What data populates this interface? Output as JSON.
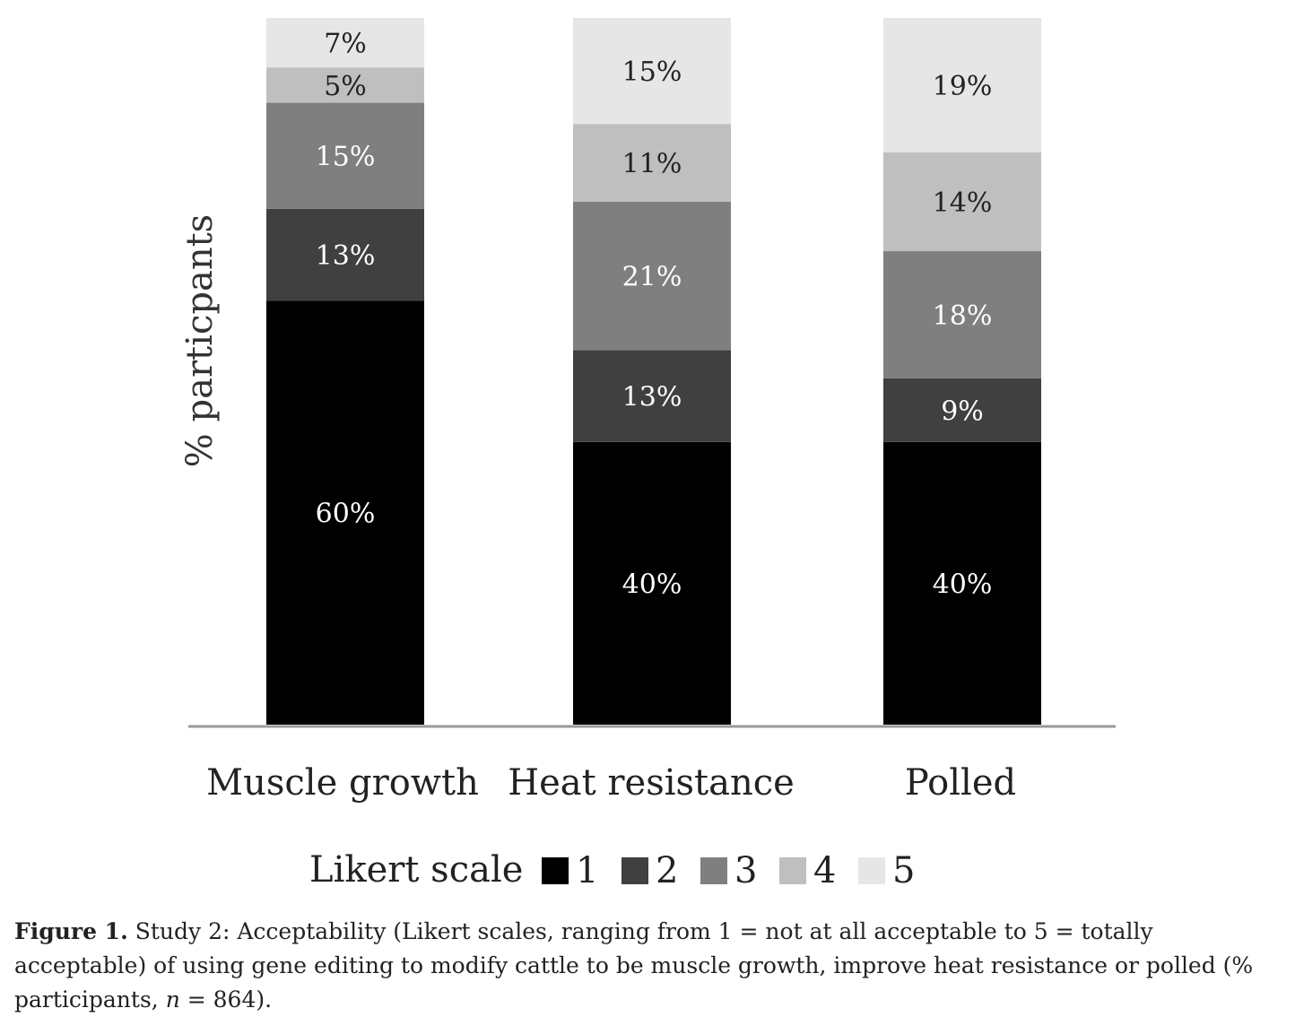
{
  "chart_data": {
    "type": "bar",
    "stacked": true,
    "ylabel": "% particpants",
    "xlabel": "",
    "ylim": [
      0,
      100
    ],
    "grid": false,
    "categories": [
      "Muscle growth",
      "Heat resistance",
      "Polled"
    ],
    "series": [
      {
        "name": "1",
        "color": "#000000",
        "values": [
          60,
          40,
          40
        ],
        "labels": [
          "60%",
          "40%",
          "40%"
        ]
      },
      {
        "name": "2",
        "color": "#404040",
        "values": [
          13,
          13,
          9
        ],
        "labels": [
          "13%",
          "13%",
          "9%"
        ]
      },
      {
        "name": "3",
        "color": "#7f7f7f",
        "values": [
          15,
          21,
          18
        ],
        "labels": [
          "15%",
          "21%",
          "18%"
        ]
      },
      {
        "name": "4",
        "color": "#bfbfbf",
        "values": [
          5,
          11,
          14
        ],
        "labels": [
          "5%",
          "11%",
          "14%"
        ]
      },
      {
        "name": "5",
        "color": "#e6e6e6",
        "values": [
          7,
          15,
          19
        ],
        "labels": [
          "7%",
          "15%",
          "19%"
        ]
      }
    ],
    "legend": {
      "title": "Likert scale",
      "placement": "bottom"
    }
  },
  "caption": {
    "label": "Figure 1.",
    "text": " Study 2: Acceptability (Likert scales, ranging from 1 = not at all acceptable to 5 = totally acceptable) of using gene editing to modify cattle to be muscle growth, improve heat resistance or polled (% participants, ",
    "n_symbol": "n",
    "n_text": " = 864)."
  }
}
